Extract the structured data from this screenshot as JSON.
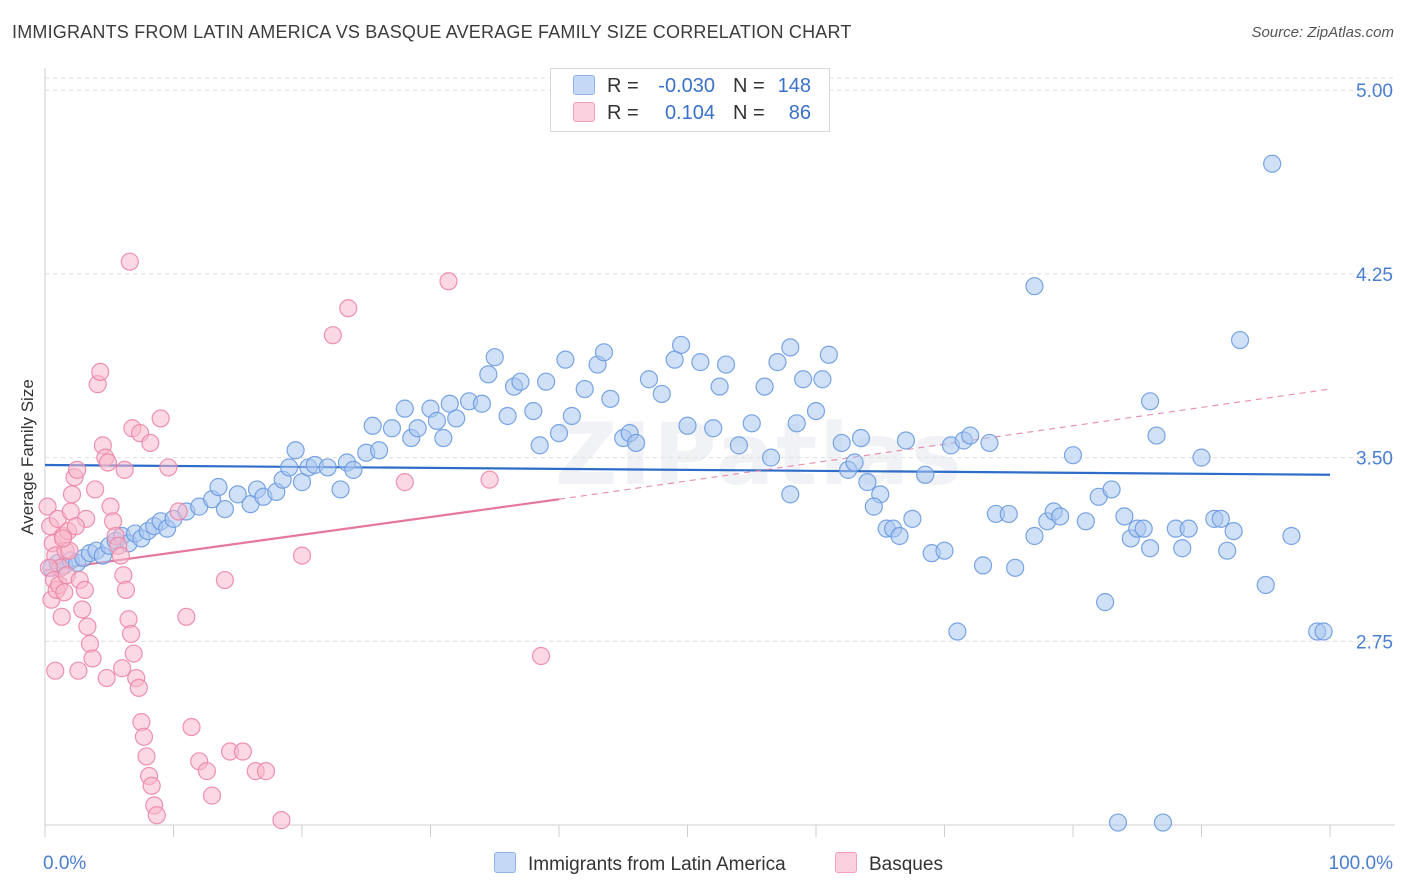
{
  "title": "IMMIGRANTS FROM LATIN AMERICA VS BASQUE AVERAGE FAMILY SIZE CORRELATION CHART",
  "source": "Source: ZipAtlas.com",
  "watermark": "ZIPatlas",
  "legend": {
    "r_label": "R =",
    "n_label": "N =",
    "rows": [
      {
        "r": "-0.030",
        "n": "148",
        "color": "#a9c6f0"
      },
      {
        "r": "0.104",
        "n": "86",
        "color": "#f7b8cc"
      }
    ]
  },
  "bottom_legend": [
    {
      "label": "Immigrants from Latin America",
      "color": "#a9c6f0"
    },
    {
      "label": "Basques",
      "color": "#f7b8cc"
    }
  ],
  "chart_data": {
    "type": "scatter",
    "title": "IMMIGRANTS FROM LATIN AMERICA VS BASQUE AVERAGE FAMILY SIZE CORRELATION CHART",
    "xlabel": "",
    "ylabel": "Average Family Size",
    "xlim": [
      0,
      100
    ],
    "ylim": [
      2.0,
      5.05
    ],
    "yticks": [
      2.75,
      3.5,
      4.25,
      5.0
    ],
    "ytick_labels": [
      "2.75",
      "3.50",
      "4.25",
      "5.00"
    ],
    "x_axis_labels": [
      "0.0%",
      "100.0%"
    ],
    "grid": true,
    "legend_position": "top-center",
    "series": [
      {
        "name": "Immigrants from Latin America",
        "color": "#6b9be0",
        "fill": "#a9c6f0",
        "r": -0.03,
        "n": 148,
        "trend": {
          "x0": 0,
          "y0": 3.47,
          "x1": 100,
          "y1": 3.43,
          "style": "solid",
          "color": "#2d6cc8"
        },
        "points": [
          [
            0.5,
            3.05
          ],
          [
            1,
            3.07
          ],
          [
            1.5,
            3.06
          ],
          [
            2,
            3.08
          ],
          [
            2.5,
            3.07
          ],
          [
            3,
            3.09
          ],
          [
            3.5,
            3.11
          ],
          [
            4,
            3.12
          ],
          [
            4.5,
            3.1
          ],
          [
            5,
            3.14
          ],
          [
            5.5,
            3.16
          ],
          [
            6,
            3.18
          ],
          [
            6.5,
            3.15
          ],
          [
            7,
            3.19
          ],
          [
            7.5,
            3.17
          ],
          [
            8,
            3.2
          ],
          [
            8.5,
            3.22
          ],
          [
            9,
            3.24
          ],
          [
            9.5,
            3.21
          ],
          [
            10,
            3.25
          ],
          [
            11,
            3.28
          ],
          [
            12,
            3.3
          ],
          [
            13,
            3.33
          ],
          [
            13.5,
            3.38
          ],
          [
            14,
            3.29
          ],
          [
            15,
            3.35
          ],
          [
            16,
            3.31
          ],
          [
            16.5,
            3.37
          ],
          [
            17,
            3.34
          ],
          [
            18,
            3.36
          ],
          [
            18.5,
            3.41
          ],
          [
            19,
            3.46
          ],
          [
            19.5,
            3.53
          ],
          [
            20,
            3.4
          ],
          [
            20.5,
            3.46
          ],
          [
            21,
            3.47
          ],
          [
            22,
            3.46
          ],
          [
            23,
            3.37
          ],
          [
            23.5,
            3.48
          ],
          [
            24,
            3.45
          ],
          [
            25,
            3.52
          ],
          [
            25.5,
            3.63
          ],
          [
            26,
            3.53
          ],
          [
            27,
            3.62
          ],
          [
            28,
            3.7
          ],
          [
            28.5,
            3.58
          ],
          [
            29,
            3.62
          ],
          [
            30,
            3.7
          ],
          [
            30.5,
            3.65
          ],
          [
            31,
            3.58
          ],
          [
            31.5,
            3.72
          ],
          [
            32,
            3.66
          ],
          [
            33,
            3.73
          ],
          [
            34,
            3.72
          ],
          [
            34.5,
            3.84
          ],
          [
            35,
            3.91
          ],
          [
            36,
            3.67
          ],
          [
            36.5,
            3.79
          ],
          [
            37,
            3.81
          ],
          [
            38,
            3.69
          ],
          [
            38.5,
            3.55
          ],
          [
            39,
            3.81
          ],
          [
            40,
            3.6
          ],
          [
            40.5,
            3.9
          ],
          [
            41,
            3.67
          ],
          [
            42,
            3.78
          ],
          [
            43,
            3.88
          ],
          [
            43.5,
            3.93
          ],
          [
            44,
            3.74
          ],
          [
            45,
            3.58
          ],
          [
            45.5,
            3.6
          ],
          [
            46,
            3.56
          ],
          [
            47,
            3.82
          ],
          [
            48,
            3.76
          ],
          [
            49,
            3.9
          ],
          [
            49.5,
            3.96
          ],
          [
            50,
            3.63
          ],
          [
            51,
            3.89
          ],
          [
            52,
            3.62
          ],
          [
            52.5,
            3.79
          ],
          [
            53,
            3.88
          ],
          [
            54,
            3.55
          ],
          [
            55,
            3.64
          ],
          [
            56,
            3.79
          ],
          [
            56.5,
            3.5
          ],
          [
            57,
            3.89
          ],
          [
            58,
            3.95
          ],
          [
            58.5,
            3.64
          ],
          [
            59,
            3.82
          ],
          [
            60,
            3.69
          ],
          [
            60.5,
            3.82
          ],
          [
            61,
            3.92
          ],
          [
            62,
            3.56
          ],
          [
            62.5,
            3.45
          ],
          [
            63,
            3.48
          ],
          [
            63.5,
            3.58
          ],
          [
            64,
            3.4
          ],
          [
            65,
            3.35
          ],
          [
            65.5,
            3.21
          ],
          [
            66,
            3.21
          ],
          [
            66.5,
            3.18
          ],
          [
            67,
            3.57
          ],
          [
            67.5,
            3.25
          ],
          [
            68.5,
            3.43
          ],
          [
            69,
            3.11
          ],
          [
            70,
            3.12
          ],
          [
            70.5,
            3.55
          ],
          [
            71,
            2.79
          ],
          [
            71.5,
            3.57
          ],
          [
            72,
            3.59
          ],
          [
            73,
            3.06
          ],
          [
            73.5,
            3.56
          ],
          [
            74,
            3.27
          ],
          [
            75,
            3.27
          ],
          [
            75.5,
            3.05
          ],
          [
            77,
            3.18
          ],
          [
            78,
            3.24
          ],
          [
            78.5,
            3.28
          ],
          [
            79,
            3.26
          ],
          [
            80,
            3.51
          ],
          [
            81,
            3.24
          ],
          [
            82,
            3.34
          ],
          [
            82.5,
            2.91
          ],
          [
            83,
            3.37
          ],
          [
            84,
            3.26
          ],
          [
            84.5,
            3.17
          ],
          [
            85,
            3.21
          ],
          [
            85.5,
            3.21
          ],
          [
            86,
            3.13
          ],
          [
            86.5,
            3.59
          ],
          [
            88,
            3.21
          ],
          [
            88.5,
            3.13
          ],
          [
            89,
            3.21
          ],
          [
            90,
            3.5
          ],
          [
            91,
            3.25
          ],
          [
            91.5,
            3.25
          ],
          [
            92,
            3.12
          ],
          [
            92.5,
            3.2
          ],
          [
            95,
            2.98
          ],
          [
            97,
            3.18
          ],
          [
            77,
            4.2
          ],
          [
            86,
            3.73
          ],
          [
            99,
            2.79
          ],
          [
            99.5,
            2.79
          ],
          [
            95.5,
            4.7
          ],
          [
            93,
            3.98
          ],
          [
            83.5,
            2.01
          ],
          [
            87,
            2.01
          ],
          [
            58,
            3.35
          ],
          [
            64.5,
            3.3
          ]
        ]
      },
      {
        "name": "Basques",
        "color": "#ec86a7",
        "fill": "#f7b8cc",
        "r": 0.104,
        "n": 86,
        "trend": {
          "x0": 0,
          "y0": 3.04,
          "x1": 40,
          "y1": 3.33,
          "x2": 100,
          "y2": 3.78,
          "style": "solid-then-dashed",
          "color": "#e5789c"
        },
        "points": [
          [
            0.2,
            3.3
          ],
          [
            0.4,
            3.22
          ],
          [
            0.6,
            3.15
          ],
          [
            0.8,
            3.1
          ],
          [
            1,
            3.25
          ],
          [
            1.2,
            3.05
          ],
          [
            1.4,
            3.18
          ],
          [
            1.6,
            3.12
          ],
          [
            1.8,
            3.2
          ],
          [
            2,
            3.28
          ],
          [
            0.3,
            3.05
          ],
          [
            0.5,
            2.92
          ],
          [
            0.7,
            3.0
          ],
          [
            0.9,
            2.96
          ],
          [
            1.1,
            2.98
          ],
          [
            1.3,
            2.85
          ],
          [
            1.5,
            2.95
          ],
          [
            1.7,
            3.02
          ],
          [
            1.9,
            3.12
          ],
          [
            2.1,
            3.35
          ],
          [
            2.3,
            3.42
          ],
          [
            2.5,
            3.45
          ],
          [
            2.7,
            3.0
          ],
          [
            2.9,
            2.88
          ],
          [
            3.1,
            2.96
          ],
          [
            3.3,
            2.81
          ],
          [
            3.5,
            2.74
          ],
          [
            3.7,
            2.68
          ],
          [
            3.9,
            3.37
          ],
          [
            4.1,
            3.8
          ],
          [
            4.3,
            3.85
          ],
          [
            4.5,
            3.55
          ],
          [
            4.7,
            3.5
          ],
          [
            4.9,
            3.48
          ],
          [
            5.1,
            3.3
          ],
          [
            5.3,
            3.24
          ],
          [
            5.5,
            3.18
          ],
          [
            5.7,
            3.14
          ],
          [
            5.9,
            3.1
          ],
          [
            6.1,
            3.02
          ],
          [
            6.3,
            2.96
          ],
          [
            6.5,
            2.84
          ],
          [
            6.7,
            2.78
          ],
          [
            6.9,
            2.7
          ],
          [
            7.1,
            2.6
          ],
          [
            7.3,
            2.56
          ],
          [
            7.5,
            2.42
          ],
          [
            7.7,
            2.36
          ],
          [
            7.9,
            2.28
          ],
          [
            8.1,
            2.2
          ],
          [
            8.3,
            2.16
          ],
          [
            8.5,
            2.08
          ],
          [
            8.7,
            2.04
          ],
          [
            3.2,
            3.25
          ],
          [
            2.4,
            3.22
          ],
          [
            1.4,
            3.17
          ],
          [
            0.8,
            2.63
          ],
          [
            2.6,
            2.63
          ],
          [
            4.8,
            2.6
          ],
          [
            6.0,
            2.64
          ],
          [
            6.6,
            4.3
          ],
          [
            6.2,
            3.45
          ],
          [
            6.8,
            3.62
          ],
          [
            7.4,
            3.6
          ],
          [
            8.2,
            3.56
          ],
          [
            9.0,
            3.66
          ],
          [
            9.6,
            3.46
          ],
          [
            10.4,
            3.28
          ],
          [
            11.0,
            2.85
          ],
          [
            11.4,
            2.4
          ],
          [
            12.0,
            2.26
          ],
          [
            12.6,
            2.22
          ],
          [
            13.0,
            2.12
          ],
          [
            14.0,
            3.0
          ],
          [
            14.4,
            2.3
          ],
          [
            15.4,
            2.3
          ],
          [
            16.4,
            2.22
          ],
          [
            17.2,
            2.22
          ],
          [
            18.4,
            2.02
          ],
          [
            20.0,
            3.1
          ],
          [
            22.4,
            4.0
          ],
          [
            23.6,
            4.11
          ],
          [
            28.0,
            3.4
          ],
          [
            31.4,
            4.22
          ],
          [
            34.6,
            3.41
          ],
          [
            38.6,
            2.69
          ]
        ]
      }
    ]
  }
}
